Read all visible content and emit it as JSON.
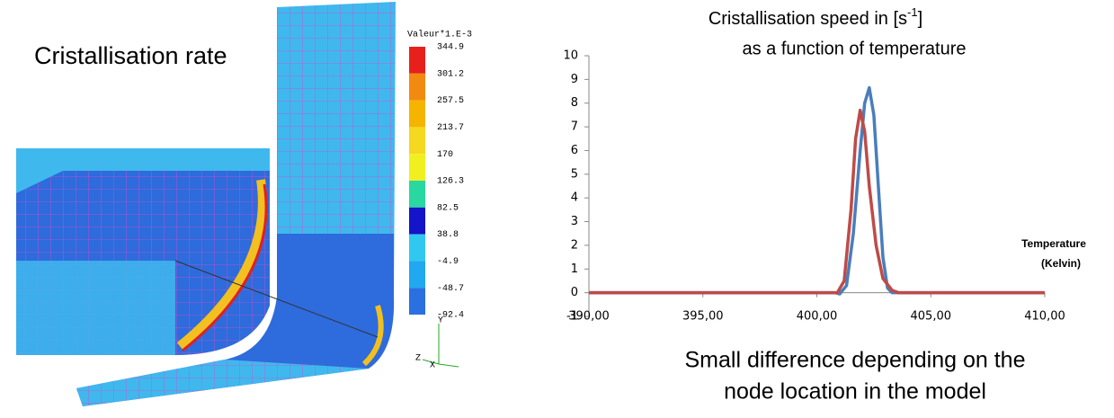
{
  "fea_image": {
    "title": "Cristallisation rate",
    "colorbar": {
      "title": "Valeur*1.E-3",
      "labels": [
        "344.9",
        "301.2",
        "257.5",
        "213.7",
        "170",
        "126.3",
        "82.5",
        "38.8",
        "-4.9",
        "-48.7",
        "-92.4"
      ]
    },
    "axes": {
      "y": "Y",
      "z": "Z",
      "x": "X"
    }
  },
  "chart_data": {
    "type": "line",
    "title": {
      "text": "Cristallisation speed  in [s",
      "superscript": "-1",
      "suffix": "]"
    },
    "subtitle": "as a function of temperature",
    "x_label": [
      "Temperature",
      "(Kelvin)"
    ],
    "xlim": [
      390,
      410
    ],
    "xticks": [
      {
        "value": 390,
        "label": "390,00"
      },
      {
        "value": 395,
        "label": "395,00"
      },
      {
        "value": 400,
        "label": "400,00"
      },
      {
        "value": 405,
        "label": "405,00"
      },
      {
        "value": 410,
        "label": "410,00"
      }
    ],
    "ylim": [
      -1,
      10
    ],
    "yticks": [
      -1,
      0,
      1,
      2,
      3,
      4,
      5,
      6,
      7,
      8,
      9,
      10
    ],
    "series": [
      {
        "color": "#4a7ebb",
        "x": [
          390,
          400.8,
          401.0,
          401.3,
          401.6,
          401.9,
          402.1,
          402.3,
          402.5,
          402.7,
          402.9,
          403.1,
          403.3,
          410
        ],
        "values": [
          0,
          0,
          -0.05,
          0.3,
          2.5,
          6.0,
          8.0,
          8.65,
          7.5,
          4.5,
          1.5,
          0.2,
          0,
          0
        ]
      },
      {
        "color": "#be4b48",
        "x": [
          390,
          400.9,
          401.2,
          401.5,
          401.7,
          401.9,
          402.1,
          402.3,
          402.6,
          402.9,
          403.3,
          403.6,
          410
        ],
        "values": [
          0,
          0,
          0.5,
          3.5,
          6.5,
          7.7,
          6.8,
          4.5,
          2.0,
          0.6,
          0.1,
          0,
          0
        ]
      }
    ],
    "note": [
      "Small difference depending on the",
      "node location in the model"
    ]
  }
}
